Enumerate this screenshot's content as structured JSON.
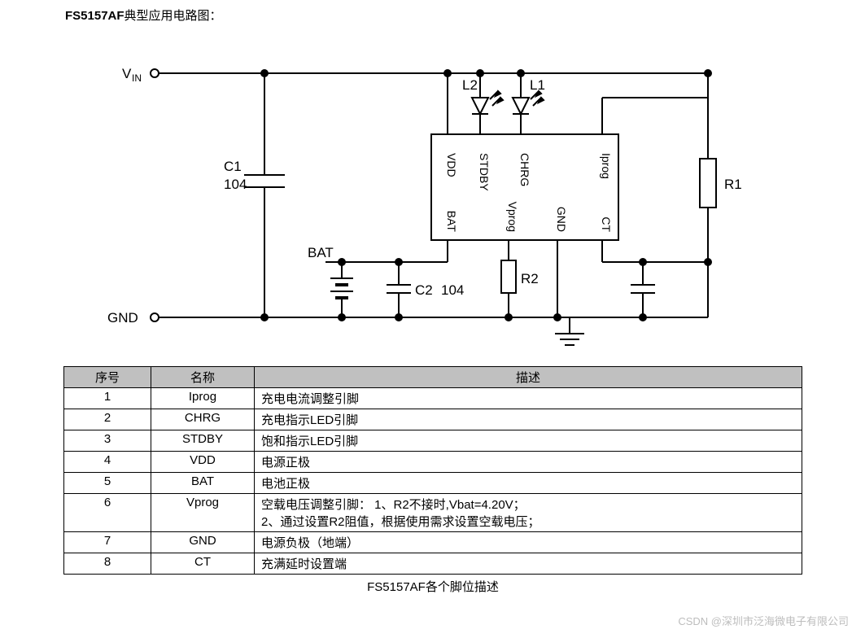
{
  "title_prefix": "FS5157AF",
  "title_suffix": "典型应用电路图：",
  "circuit": {
    "stroke": "#000000",
    "stroke_width": 2,
    "text_color": "#000000",
    "font_size": 17,
    "small_font_size": 14,
    "labels": {
      "vin": "V",
      "vin_sub": "IN",
      "gnd": "GND",
      "c1": "C1",
      "c1_val": "104",
      "c2": "C2",
      "c2_val": "104",
      "bat": "BAT",
      "r1": "R1",
      "r2": "R2",
      "l1": "L1",
      "l2": "L2"
    },
    "ic_pins": {
      "vdd": "VDD",
      "stdby": "STDBY",
      "chrg": "CHRG",
      "iprog": "Iprog",
      "bat": "BAT",
      "vprog": "Vprog",
      "gnd": "GND",
      "ct": "CT"
    }
  },
  "table": {
    "headers": [
      "序号",
      "名称",
      "描述"
    ],
    "rows": [
      {
        "idx": "1",
        "name": "Iprog",
        "desc": "充电电流调整引脚"
      },
      {
        "idx": "2",
        "name": "CHRG",
        "desc": "充电指示LED引脚"
      },
      {
        "idx": "3",
        "name": "STDBY",
        "desc": "饱和指示LED引脚"
      },
      {
        "idx": "4",
        "name": "VDD",
        "desc": "电源正极"
      },
      {
        "idx": "5",
        "name": "BAT",
        "desc": "电池正极"
      },
      {
        "idx": "6",
        "name": "Vprog",
        "desc": "空载电压调整引脚：    1、R2不接时,Vbat=4.20V；\n                                      2、通过设置R2阻值，根据使用需求设置空载电压；"
      },
      {
        "idx": "7",
        "name": "GND",
        "desc": "电源负极（地端）"
      },
      {
        "idx": "8",
        "name": "CT",
        "desc": "充满延时设置端"
      }
    ],
    "caption": "FS5157AF各个脚位描述"
  },
  "watermark": "CSDN @深圳市泛海微电子有限公司"
}
